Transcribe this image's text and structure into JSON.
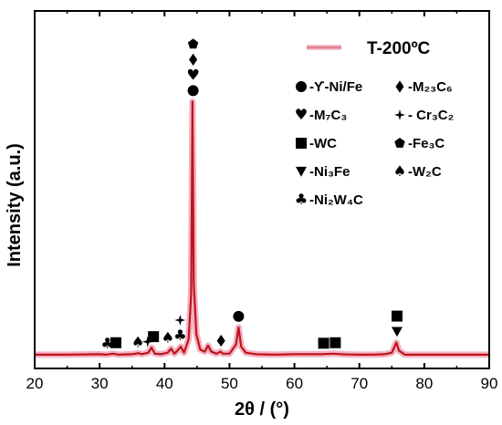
{
  "chart_data": {
    "type": "line",
    "xlabel": "2θ / (°)",
    "ylabel": "Intensity (a.u.)",
    "xlim": [
      20,
      90
    ],
    "xticks": [
      "20",
      "30",
      "40",
      "50",
      "60",
      "70",
      "80",
      "90"
    ],
    "series": [
      {
        "name": "T-200ºC",
        "color": "#c0141c",
        "band_color": "#f3b3c3",
        "points": [
          [
            20,
            10
          ],
          [
            25,
            10
          ],
          [
            30,
            10.5
          ],
          [
            31,
            10
          ],
          [
            32,
            11
          ],
          [
            33,
            10
          ],
          [
            35,
            10.5
          ],
          [
            36,
            11.5
          ],
          [
            36.5,
            10.5
          ],
          [
            37.5,
            12
          ],
          [
            38,
            17
          ],
          [
            38.5,
            11
          ],
          [
            39.5,
            10.5
          ],
          [
            40.5,
            12
          ],
          [
            41,
            16
          ],
          [
            41.5,
            11
          ],
          [
            42,
            14
          ],
          [
            42.5,
            18
          ],
          [
            43,
            12
          ],
          [
            43.7,
            25
          ],
          [
            44.1,
            70
          ],
          [
            44.3,
            260
          ],
          [
            44.5,
            80
          ],
          [
            44.9,
            30
          ],
          [
            45.5,
            15
          ],
          [
            46.2,
            13
          ],
          [
            46.7,
            19
          ],
          [
            47.2,
            13
          ],
          [
            48,
            11
          ],
          [
            48.6,
            13
          ],
          [
            49,
            11
          ],
          [
            50,
            11
          ],
          [
            51,
            20
          ],
          [
            51.4,
            37
          ],
          [
            51.8,
            18
          ],
          [
            52.5,
            12
          ],
          [
            54,
            10.5
          ],
          [
            57,
            10
          ],
          [
            60,
            10.5
          ],
          [
            64,
            10.5
          ],
          [
            66,
            11
          ],
          [
            68,
            10.2
          ],
          [
            70,
            10
          ],
          [
            72,
            10
          ],
          [
            74,
            10.5
          ],
          [
            75,
            12
          ],
          [
            75.7,
            22
          ],
          [
            76.1,
            14
          ],
          [
            77,
            10
          ],
          [
            80,
            10
          ],
          [
            85,
            10
          ],
          [
            90,
            10
          ]
        ]
      }
    ],
    "annotations": [
      {
        "x": 44.4,
        "stack": [
          "circle",
          "heart",
          "diamond",
          "pentagon"
        ]
      },
      {
        "x": 51.4,
        "stack": [
          "circle"
        ]
      },
      {
        "x": 48.7,
        "stack": [
          "diamond"
        ]
      },
      {
        "x": 42.4,
        "stack": [
          "club",
          "star4"
        ]
      },
      {
        "x": 40.5,
        "stack": [
          "spade"
        ]
      },
      {
        "x": 38.3,
        "stack": [
          "square"
        ]
      },
      {
        "x": 37.4,
        "stack": [
          "star4"
        ]
      },
      {
        "x": 35.9,
        "stack": [
          "spade"
        ]
      },
      {
        "x": 32.5,
        "stack": [
          "square"
        ]
      },
      {
        "x": 31.2,
        "stack": [
          "club"
        ]
      },
      {
        "x": 64.5,
        "stack": [
          "square"
        ]
      },
      {
        "x": 66.3,
        "stack": [
          "square"
        ]
      },
      {
        "x": 75.8,
        "stack": [
          "triangle-down",
          "square"
        ]
      }
    ]
  },
  "legend": {
    "series_label": "T-200ºC",
    "phases": [
      {
        "icon": "circle",
        "label": "-ϒ-Ni/Fe"
      },
      {
        "icon": "diamond",
        "label": "-M₂₃C₆"
      },
      {
        "icon": "heart",
        "label": "-M₇C₃"
      },
      {
        "icon": "star4",
        "label": "- Cr₃C₂"
      },
      {
        "icon": "square",
        "label": "-WC"
      },
      {
        "icon": "pentagon",
        "label": "-Fe₃C"
      },
      {
        "icon": "triangle-down",
        "label": "-Ni₃Fe"
      },
      {
        "icon": "spade",
        "label": "-W₂C"
      },
      {
        "icon": "club",
        "label": "-Ni₂W₄C"
      }
    ]
  }
}
